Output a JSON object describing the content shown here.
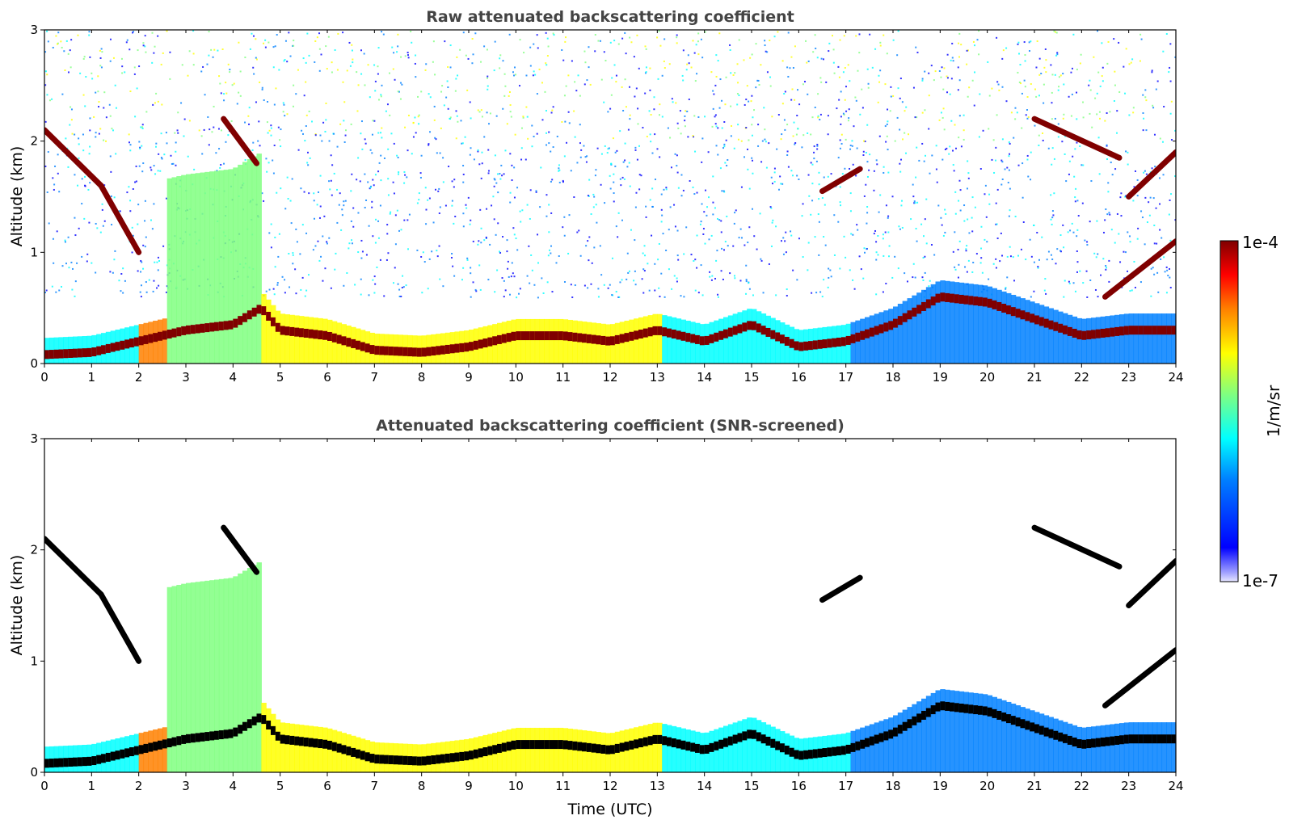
{
  "chart_data": [
    {
      "type": "heatmap",
      "title": "Raw attenuated backscattering coefficient",
      "xlabel": "",
      "ylabel": "Altitude (km)",
      "xlim": [
        0,
        24
      ],
      "ylim": [
        0,
        3
      ],
      "xticks": [
        "0",
        "1",
        "2",
        "3",
        "4",
        "5",
        "6",
        "7",
        "8",
        "9",
        "10",
        "11",
        "12",
        "13",
        "14",
        "15",
        "16",
        "17",
        "18",
        "19",
        "20",
        "21",
        "22",
        "23",
        "24"
      ],
      "yticks": [
        "0",
        "1",
        "2",
        "3"
      ],
      "color_scale": {
        "min": "1e-7",
        "max": "1e-4",
        "units": "1/m/sr"
      },
      "boundary_layer_top_km": [
        [
          0,
          0.08
        ],
        [
          1,
          0.1
        ],
        [
          2,
          0.2
        ],
        [
          3,
          0.3
        ],
        [
          4,
          0.35
        ],
        [
          4.6,
          0.5
        ],
        [
          5,
          0.3
        ],
        [
          6,
          0.25
        ],
        [
          7,
          0.12
        ],
        [
          8,
          0.1
        ],
        [
          9,
          0.15
        ],
        [
          10,
          0.25
        ],
        [
          11,
          0.25
        ],
        [
          12,
          0.2
        ],
        [
          13,
          0.3
        ],
        [
          14,
          0.2
        ],
        [
          15,
          0.35
        ],
        [
          16,
          0.15
        ],
        [
          17,
          0.2
        ],
        [
          18,
          0.35
        ],
        [
          19,
          0.6
        ],
        [
          20,
          0.55
        ],
        [
          21,
          0.4
        ],
        [
          22,
          0.25
        ],
        [
          23,
          0.3
        ],
        [
          24,
          0.3
        ]
      ],
      "elevated_layers": [
        {
          "x": [
            0,
            1.2
          ],
          "y": [
            2.1,
            1.6
          ]
        },
        {
          "x": [
            1.2,
            2.0
          ],
          "y": [
            1.6,
            1.0
          ]
        },
        {
          "x": [
            3.8,
            4.5
          ],
          "y": [
            2.2,
            1.8
          ]
        },
        {
          "x": [
            16.5,
            17.3
          ],
          "y": [
            1.55,
            1.75
          ]
        },
        {
          "x": [
            21.0,
            22.8
          ],
          "y": [
            2.2,
            1.85
          ]
        },
        {
          "x": [
            23.0,
            24.0
          ],
          "y": [
            1.5,
            1.9
          ]
        },
        {
          "x": [
            22.5,
            24.0
          ],
          "y": [
            0.6,
            1.1
          ]
        }
      ]
    },
    {
      "type": "heatmap",
      "title": "Attenuated backscattering coefficient (SNR-screened)",
      "xlabel": "Time (UTC)",
      "ylabel": "Altitude (km)",
      "xlim": [
        0,
        24
      ],
      "ylim": [
        0,
        3
      ],
      "xticks": [
        "0",
        "1",
        "2",
        "3",
        "4",
        "5",
        "6",
        "7",
        "8",
        "9",
        "10",
        "11",
        "12",
        "13",
        "14",
        "15",
        "16",
        "17",
        "18",
        "19",
        "20",
        "21",
        "22",
        "23",
        "24"
      ],
      "yticks": [
        "0",
        "1",
        "2",
        "3"
      ],
      "color_scale": {
        "min": "1e-7",
        "max": "1e-4",
        "units": "1/m/sr"
      }
    }
  ],
  "colorbar": {
    "max_label": "1e-4",
    "min_label": "1e-7",
    "units": "1/m/sr"
  },
  "colors": {
    "jet": [
      "#00008f",
      "#0000ff",
      "#0080ff",
      "#00ffff",
      "#80ff80",
      "#ffff00",
      "#ff8000",
      "#ff0000",
      "#800000"
    ],
    "title_gray": "#444444"
  }
}
